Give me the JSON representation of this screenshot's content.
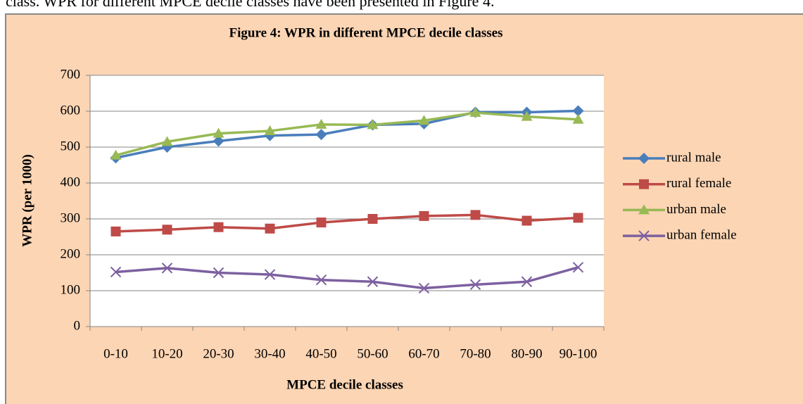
{
  "text_above": "class. WPR for different MPCE decile classes have been presented in Figure 4.",
  "chart_data": {
    "type": "line",
    "title": "Figure 4: WPR in different MPCE decile classes",
    "xlabel": "MPCE decile classes",
    "ylabel": "WPR (per 1000)",
    "categories": [
      "0-10",
      "10-20",
      "20-30",
      "30-40",
      "40-50",
      "50-60",
      "60-70",
      "70-80",
      "80-90",
      "90-100"
    ],
    "series": [
      {
        "name": "rural male",
        "color": "#4a7ebb",
        "marker": "diamond",
        "values": [
          470,
          500,
          517,
          532,
          535,
          562,
          565,
          597,
          597,
          601
        ]
      },
      {
        "name": "rural female",
        "color": "#be4b48",
        "marker": "square",
        "values": [
          265,
          270,
          277,
          273,
          290,
          300,
          308,
          311,
          295,
          303
        ]
      },
      {
        "name": "urban male",
        "color": "#98b954",
        "marker": "triangle",
        "values": [
          477,
          515,
          538,
          545,
          563,
          562,
          574,
          596,
          585,
          577
        ]
      },
      {
        "name": "urban female",
        "color": "#7d60a0",
        "marker": "x",
        "values": [
          152,
          163,
          150,
          145,
          130,
          125,
          107,
          117,
          125,
          165
        ]
      }
    ],
    "ylim": [
      0,
      700
    ],
    "yticks": [
      0,
      100,
      200,
      300,
      400,
      500,
      600,
      700
    ],
    "grid": true,
    "legend": "right"
  }
}
